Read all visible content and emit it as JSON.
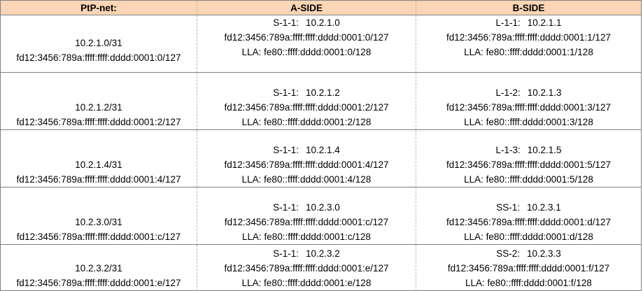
{
  "headers": [
    "PtP-net:",
    "A-SIDE",
    "B-SIDE"
  ],
  "rows": [
    {
      "net": [
        "10.2.1.0/31",
        "fd12:3456:789a:ffff:ffff:dddd:0001:0/127"
      ],
      "a": {
        "name": "S-1-1:",
        "ipv4": "10.2.1.0",
        "ipv6": "fd12:3456:789a:ffff:ffff:dddd:0001:0/127",
        "lla": "LLA: fe80::ffff:dddd:0001:0/128"
      },
      "b": {
        "name": "L-1-1:",
        "ipv4": "10.2.1.1",
        "ipv6": "fd12:3456:789a:ffff:ffff:dddd:0001:1/127",
        "lla": "LLA: fe80::ffff:dddd:0001:1/128"
      }
    },
    {
      "net": [
        "10.2.1.2/31",
        "fd12:3456:789a:ffff:ffff:dddd:0001:2/127"
      ],
      "a": {
        "name": "S-1-1:",
        "ipv4": "10.2.1.2",
        "ipv6": "fd12:3456:789a:ffff:ffff:dddd:0001:2/127",
        "lla": "LLA: fe80::ffff:dddd:0001:2/128"
      },
      "b": {
        "name": "L-1-2:",
        "ipv4": "10.2.1.3",
        "ipv6": "fd12:3456:789a:ffff:ffff:dddd:0001:3/127",
        "lla": "LLA: fe80::ffff:dddd:0001:3/128"
      }
    },
    {
      "net": [
        "10.2.1.4/31",
        "fd12:3456:789a:ffff:ffff:dddd:0001:4/127"
      ],
      "a": {
        "name": "S-1-1:",
        "ipv4": "10.2.1.4",
        "ipv6": "fd12:3456:789a:ffff:ffff:dddd:0001:4/127",
        "lla": "LLA: fe80::ffff:dddd:0001:4/128"
      },
      "b": {
        "name": "L-1-3:",
        "ipv4": "10.2.1.5",
        "ipv6": "fd12:3456:789a:ffff:ffff:dddd:0001:5/127",
        "lla": "LLA: fe80::ffff:dddd:0001:5/128"
      }
    },
    {
      "net": [
        "10.2.3.0/31",
        "fd12:3456:789a:ffff:ffff:dddd:0001:c/127"
      ],
      "a": {
        "name": "S-1-1:",
        "ipv4": "10.2.3.0",
        "ipv6": "fd12:3456:789a:ffff:ffff:dddd:0001:c/127",
        "lla": "LLA: fe80::ffff:dddd:0001:c/128"
      },
      "b": {
        "name": "SS-1:",
        "ipv4": "10.2.3.1",
        "ipv6": "fd12:3456:789a:ffff:ffff:dddd:0001:d/127",
        "lla": "LLA: fe80::ffff:dddd:0001:d/128"
      }
    },
    {
      "net": [
        "10.2.3.2/31",
        "fd12:3456:789a:ffff:ffff:dddd:0001:e/127"
      ],
      "a": {
        "name": "S-1-1:",
        "ipv4": "10.2.3.2",
        "ipv6": "fd12:3456:789a:ffff:ffff:dddd:0001:e/127",
        "lla": "LLA: fe80::ffff:dddd:0001:e/128"
      },
      "b": {
        "name": "SS-2:",
        "ipv4": "10.2.3.3",
        "ipv6": "fd12:3456:789a:ffff:ffff:dddd:0001:f/127",
        "lla": "LLA: fe80::ffff:dddd:0001:f/128"
      }
    }
  ]
}
